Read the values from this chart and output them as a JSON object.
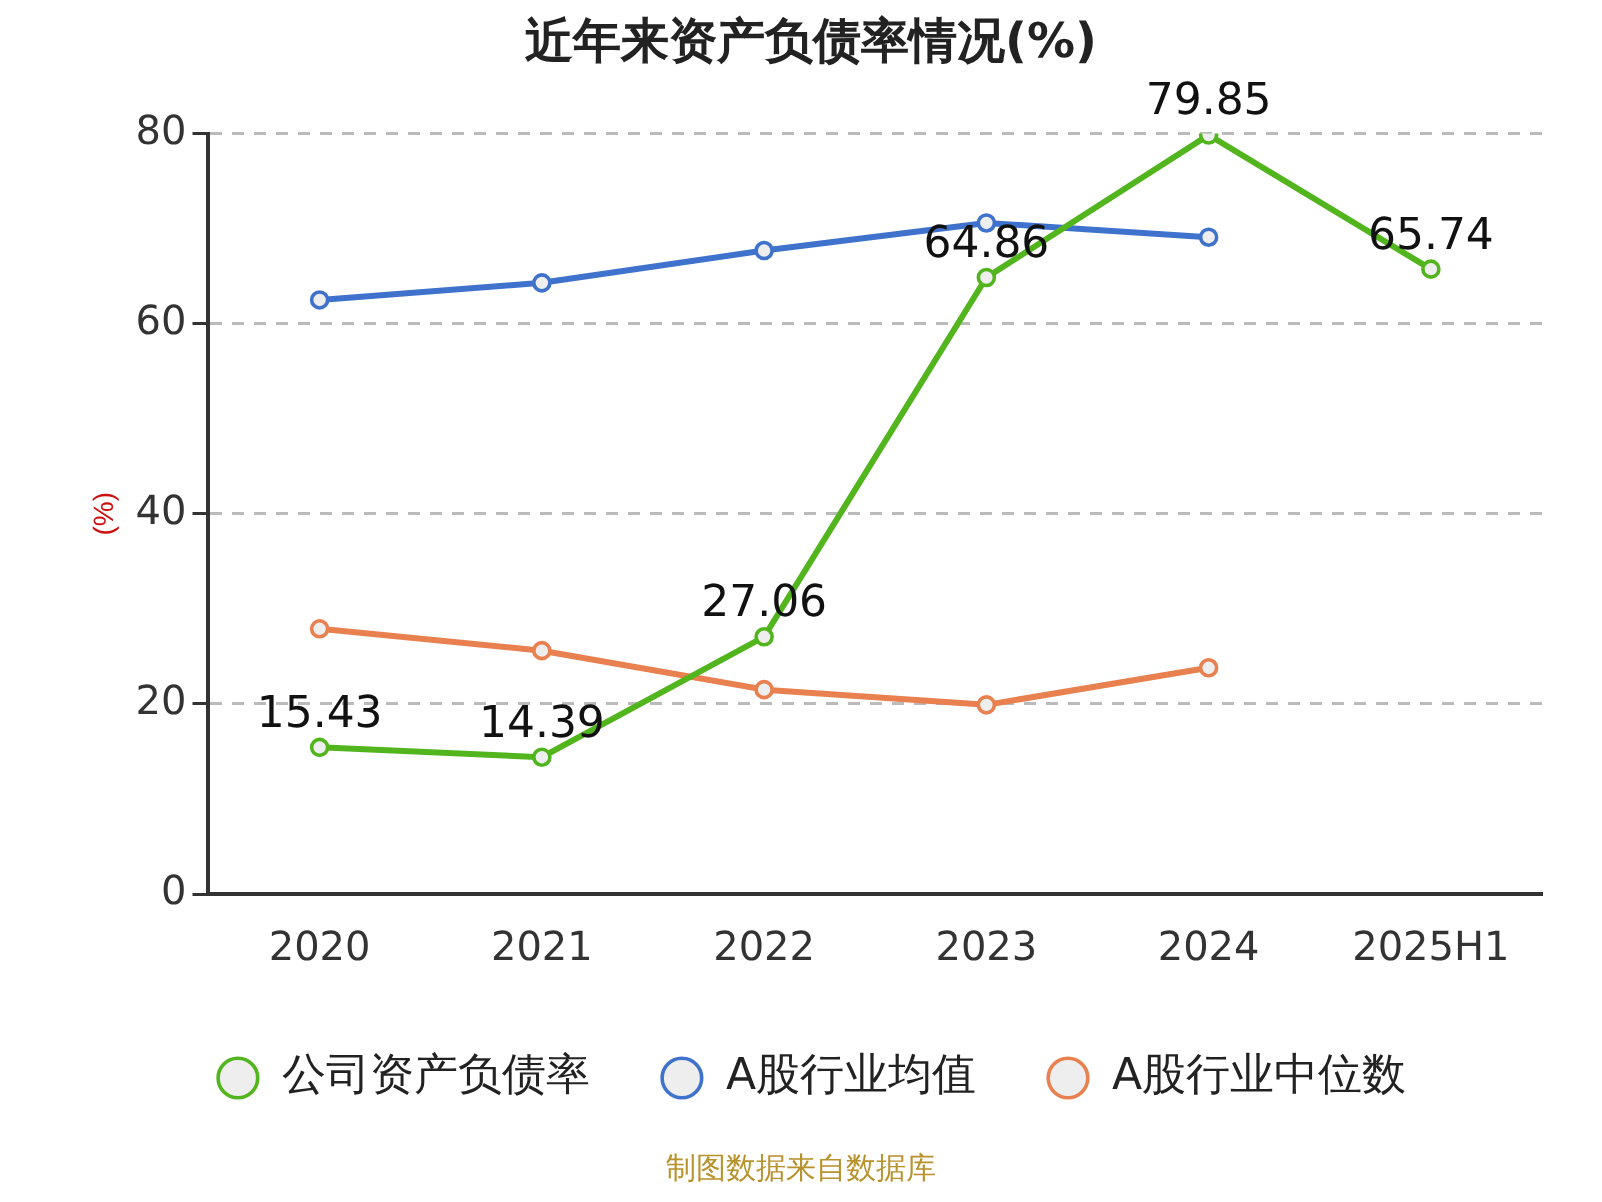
{
  "chart_data": {
    "type": "line",
    "title": "近年来资产负债率情况(%)",
    "ylabel": "(%)",
    "categories": [
      "2020",
      "2021",
      "2022",
      "2023",
      "2024",
      "2025H1"
    ],
    "series": [
      {
        "name": "公司资产负债率",
        "color": "#52b51e",
        "values": [
          15.43,
          14.39,
          27.06,
          64.86,
          79.85,
          65.74
        ],
        "value_labels": [
          "15.43",
          "14.39",
          "27.06",
          "64.86",
          "79.85",
          "65.74"
        ]
      },
      {
        "name": "A股行业均值",
        "color": "#3f72cc",
        "values": [
          62.5,
          64.3,
          67.7,
          70.6,
          69.1,
          null
        ]
      },
      {
        "name": "A股行业中位数",
        "color": "#e8804f",
        "values": [
          27.9,
          25.6,
          21.5,
          19.9,
          23.8,
          null
        ]
      }
    ],
    "ylim": [
      0,
      80
    ],
    "yticks": [
      0,
      20,
      40,
      60,
      80
    ],
    "grid": "y",
    "legend": "bottom",
    "marker": "circle",
    "line_style": "solid",
    "annotations": [
      "制图数据来自数据库"
    ]
  }
}
